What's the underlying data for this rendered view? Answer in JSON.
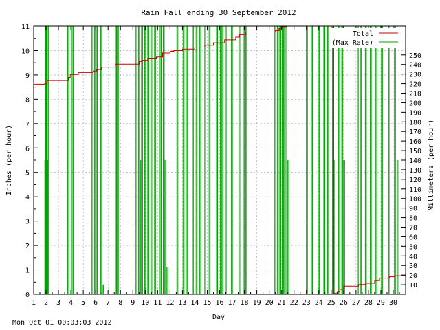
{
  "chart_data": {
    "type": "line",
    "title": "Rain Fall ending 30 September 2012",
    "xlabel": "Day",
    "ylabel": "Inches (per hour)",
    "y2label": "Millimeters (per hour)",
    "xlim": [
      1,
      31
    ],
    "ylim": [
      0,
      11
    ],
    "y2lim": [
      0,
      280
    ],
    "x_ticks": [
      1,
      2,
      3,
      4,
      5,
      6,
      7,
      8,
      9,
      10,
      11,
      12,
      13,
      14,
      15,
      16,
      17,
      18,
      19,
      20,
      21,
      22,
      23,
      24,
      25,
      26,
      27,
      28,
      29,
      30
    ],
    "y_ticks": [
      0,
      1,
      2,
      3,
      4,
      5,
      6,
      7,
      8,
      9,
      10,
      11
    ],
    "y2_ticks": [
      10,
      20,
      30,
      40,
      50,
      60,
      70,
      80,
      90,
      100,
      110,
      120,
      130,
      140,
      150,
      160,
      170,
      180,
      190,
      200,
      210,
      220,
      230,
      240,
      250
    ],
    "grid": true,
    "legend_position": "top-right",
    "series": [
      {
        "name": "Total",
        "color": "#cc0000",
        "points": [
          [
            1,
            8.62
          ],
          [
            1.9,
            8.62
          ],
          [
            1.9,
            8.65
          ],
          [
            2.1,
            8.65
          ],
          [
            2.1,
            8.77
          ],
          [
            3.8,
            8.77
          ],
          [
            3.8,
            8.9
          ],
          [
            3.95,
            8.9
          ],
          [
            3.95,
            9.02
          ],
          [
            4.6,
            9.02
          ],
          [
            4.6,
            9.1
          ],
          [
            5.8,
            9.1
          ],
          [
            5.8,
            9.16
          ],
          [
            6.1,
            9.16
          ],
          [
            6.1,
            9.22
          ],
          [
            6.45,
            9.22
          ],
          [
            6.45,
            9.32
          ],
          [
            7.6,
            9.32
          ],
          [
            7.6,
            9.44
          ],
          [
            9.5,
            9.44
          ],
          [
            9.5,
            9.55
          ],
          [
            9.7,
            9.55
          ],
          [
            9.7,
            9.6
          ],
          [
            10.2,
            9.6
          ],
          [
            10.2,
            9.66
          ],
          [
            10.9,
            9.66
          ],
          [
            10.9,
            9.74
          ],
          [
            11.4,
            9.74
          ],
          [
            11.4,
            9.9
          ],
          [
            12,
            9.9
          ],
          [
            12,
            9.97
          ],
          [
            12.3,
            9.97
          ],
          [
            12.3,
            10.0
          ],
          [
            13.0,
            10.0
          ],
          [
            13.0,
            10.06
          ],
          [
            14.0,
            10.06
          ],
          [
            14.0,
            10.14
          ],
          [
            14.8,
            10.14
          ],
          [
            14.8,
            10.22
          ],
          [
            15.5,
            10.22
          ],
          [
            15.5,
            10.32
          ],
          [
            16.4,
            10.32
          ],
          [
            16.4,
            10.44
          ],
          [
            17.3,
            10.44
          ],
          [
            17.3,
            10.55
          ],
          [
            17.6,
            10.55
          ],
          [
            17.6,
            10.65
          ],
          [
            18.1,
            10.65
          ],
          [
            18.1,
            10.76
          ],
          [
            20.5,
            10.76
          ],
          [
            20.5,
            10.82
          ],
          [
            20.8,
            10.82
          ],
          [
            20.8,
            10.9
          ],
          [
            21.0,
            10.9
          ],
          [
            21.0,
            10.98
          ],
          [
            21.4,
            10.98
          ],
          [
            21.4,
            11.1
          ],
          [
            25.2,
            11.1
          ],
          [
            25.2,
            0.05
          ],
          [
            25.5,
            0.05
          ],
          [
            25.5,
            0.12
          ],
          [
            25.7,
            0.12
          ],
          [
            25.7,
            0.2
          ],
          [
            26.0,
            0.2
          ],
          [
            26.0,
            0.33
          ],
          [
            27.2,
            0.33
          ],
          [
            27.2,
            0.4
          ],
          [
            27.8,
            0.4
          ],
          [
            27.8,
            0.45
          ],
          [
            28.5,
            0.45
          ],
          [
            28.5,
            0.57
          ],
          [
            28.9,
            0.57
          ],
          [
            28.9,
            0.66
          ],
          [
            29.7,
            0.66
          ],
          [
            29.7,
            0.72
          ],
          [
            30.1,
            0.72
          ],
          [
            30.1,
            0.76
          ],
          [
            31,
            0.76
          ]
        ]
      },
      {
        "name": "(Max Rate)",
        "color": "#00a000",
        "spikes": [
          [
            1.9,
            5.5
          ],
          [
            1.95,
            11
          ],
          [
            2.0,
            11
          ],
          [
            2.05,
            5.5
          ],
          [
            2.1,
            11
          ],
          [
            3.75,
            11
          ],
          [
            4.1,
            11
          ],
          [
            5.7,
            11
          ],
          [
            5.9,
            11
          ],
          [
            6.05,
            11
          ],
          [
            6.4,
            11
          ],
          [
            6.55,
            0.4
          ],
          [
            7.6,
            11
          ],
          [
            7.75,
            11
          ],
          [
            9.25,
            11
          ],
          [
            9.45,
            11
          ],
          [
            9.55,
            5.5
          ],
          [
            9.7,
            11
          ],
          [
            9.95,
            11
          ],
          [
            10.2,
            11
          ],
          [
            10.45,
            11
          ],
          [
            10.75,
            11
          ],
          [
            11.2,
            11
          ],
          [
            11.45,
            11
          ],
          [
            11.6,
            5.5
          ],
          [
            11.75,
            1.1
          ],
          [
            12.55,
            11
          ],
          [
            13.05,
            11
          ],
          [
            13.3,
            11
          ],
          [
            13.8,
            11
          ],
          [
            14.1,
            11
          ],
          [
            14.4,
            11
          ],
          [
            14.8,
            11
          ],
          [
            15.15,
            11
          ],
          [
            15.75,
            11
          ],
          [
            16.05,
            11
          ],
          [
            16.2,
            11
          ],
          [
            16.45,
            11
          ],
          [
            16.95,
            11
          ],
          [
            17.55,
            11
          ],
          [
            17.9,
            11
          ],
          [
            18.1,
            11
          ],
          [
            20.45,
            11
          ],
          [
            20.65,
            11
          ],
          [
            20.85,
            11
          ],
          [
            21.05,
            11
          ],
          [
            21.15,
            11
          ],
          [
            21.35,
            11
          ],
          [
            21.5,
            5.5
          ],
          [
            23.0,
            11
          ],
          [
            23.4,
            11
          ],
          [
            23.95,
            11
          ],
          [
            24.4,
            11
          ],
          [
            24.7,
            11
          ],
          [
            25.1,
            11
          ],
          [
            25.2,
            5.5
          ],
          [
            25.6,
            11
          ],
          [
            25.85,
            11
          ],
          [
            26.0,
            5.5
          ],
          [
            27.1,
            11
          ],
          [
            27.35,
            11
          ],
          [
            27.75,
            11
          ],
          [
            28.15,
            11
          ],
          [
            28.6,
            11
          ],
          [
            29.05,
            11
          ],
          [
            29.65,
            11
          ],
          [
            30.1,
            11
          ],
          [
            30.3,
            5.5
          ]
        ]
      }
    ]
  },
  "footer_timestamp": "Mon Oct 01 00:03:03 2012"
}
